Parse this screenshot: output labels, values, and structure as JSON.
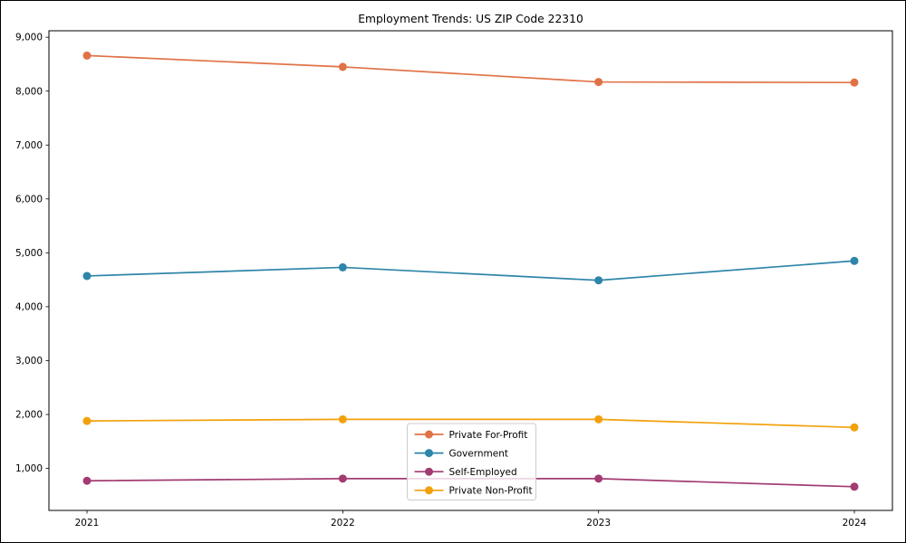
{
  "chart_data": {
    "type": "line",
    "title": "Employment Trends: US ZIP Code 22310",
    "categories": [
      "2021",
      "2022",
      "2023",
      "2024"
    ],
    "series": [
      {
        "name": "Private For-Profit",
        "color": "#E07246",
        "values": [
          8660,
          8450,
          8170,
          8160
        ]
      },
      {
        "name": "Government",
        "color": "#2E85A8",
        "values": [
          4570,
          4730,
          4490,
          4850
        ]
      },
      {
        "name": "Self-Employed",
        "color": "#A23B72",
        "values": [
          770,
          810,
          810,
          660
        ]
      },
      {
        "name": "Private Non-Profit",
        "color": "#F2A10B",
        "values": [
          1880,
          1910,
          1910,
          1760
        ]
      }
    ],
    "xlabel": "",
    "ylabel": "",
    "ylim": [
      220,
      9120
    ],
    "yticks": [
      1000,
      2000,
      3000,
      4000,
      5000,
      6000,
      7000,
      8000,
      9000
    ],
    "ytick_format": "comma",
    "grid": false,
    "marker": "circle",
    "legend_position": "lower center",
    "frame_color": "#000000",
    "legend_border_color": "#cccccc",
    "background_color": "#ffffff"
  }
}
